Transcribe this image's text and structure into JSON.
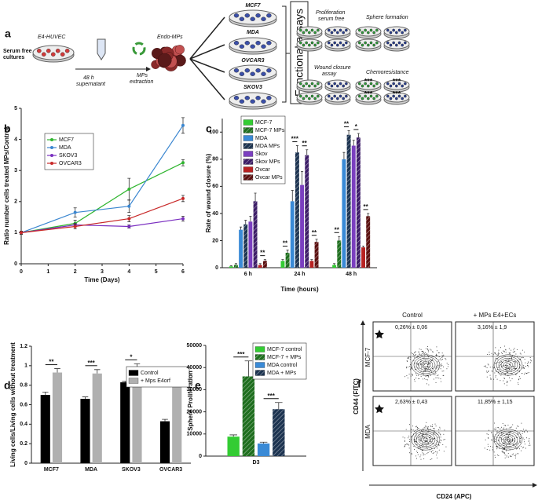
{
  "panel_a": {
    "label": "a",
    "serum_free_cultures": [
      "Serum free",
      "cultures"
    ],
    "cell_line": "E4-HUVEC",
    "supernatant": [
      "48 h",
      "supernatant"
    ],
    "extraction": [
      "MPs",
      "extraction"
    ],
    "endo_mps": "Endo-MPs",
    "targets": [
      "MCF7",
      "MDA",
      "OVCAR3",
      "SKOV3"
    ],
    "functional_assays": "Functional assays",
    "assays": [
      {
        "title": [
          "Proliferation",
          "serum free"
        ]
      },
      {
        "title": [
          "Sphere formation"
        ]
      },
      {
        "title": [
          "Wound closure",
          "assay"
        ]
      },
      {
        "title": [
          "Chemoresistance"
        ],
        "mark": "***"
      }
    ]
  },
  "chart_data": [
    {
      "type": "line",
      "panel": "b",
      "ylabel": "Ratio number cells treated MPs/Control",
      "xlabel": "Time (Days)",
      "x": [
        0,
        2,
        4,
        6
      ],
      "xlim": [
        0,
        6
      ],
      "xticks": [
        0,
        1,
        2,
        3,
        4,
        5,
        6
      ],
      "ylim": [
        0,
        5
      ],
      "yticks": [
        0,
        1,
        2,
        3,
        4,
        5
      ],
      "legend": "upper left",
      "series": [
        {
          "name": "MCF7",
          "color": "#2fb52f",
          "values": [
            1,
            1.3,
            2.4,
            3.25
          ],
          "errors": [
            0.05,
            0.1,
            0.35,
            0.1
          ]
        },
        {
          "name": "MDA",
          "color": "#3a86d0",
          "values": [
            1,
            1.65,
            1.85,
            4.45
          ],
          "errors": [
            0.05,
            0.15,
            0.2,
            0.25
          ]
        },
        {
          "name": "SKOV3",
          "color": "#7a2fc0",
          "values": [
            1,
            1.25,
            1.2,
            1.45
          ],
          "errors": [
            0.05,
            0.05,
            0.05,
            0.08
          ]
        },
        {
          "name": "OVCAR3",
          "color": "#c82828",
          "values": [
            1,
            1.2,
            1.45,
            2.1
          ],
          "errors": [
            0.05,
            0.08,
            0.1,
            0.1
          ]
        }
      ]
    },
    {
      "type": "bar",
      "panel": "c",
      "ylabel": "Rate of wound closure (%)",
      "xlabel": "Time (hours)",
      "categories": [
        "6 h",
        "24 h",
        "48 h"
      ],
      "ylim": [
        0,
        110
      ],
      "yticks": [
        0,
        20,
        40,
        60,
        80,
        100
      ],
      "legend": "upper left",
      "series": [
        {
          "name": "MCF-7",
          "color": "#33cc33",
          "values": [
            1,
            5,
            2
          ],
          "errors": [
            0.5,
            1,
            1
          ]
        },
        {
          "name": "MCF-7 MPs",
          "color": "#1e6e1e",
          "hatched": true,
          "values": [
            2,
            11,
            20
          ],
          "errors": [
            1,
            2,
            3
          ]
        },
        {
          "name": "MDA",
          "color": "#3a8ad6",
          "values": [
            28,
            49,
            80
          ],
          "errors": [
            2,
            8,
            5
          ]
        },
        {
          "name": "MDA MPs",
          "color": "#1c3350",
          "hatched": true,
          "values": [
            32,
            85,
            98
          ],
          "errors": [
            3,
            5,
            3
          ]
        },
        {
          "name": "Skov",
          "color": "#7b3fc0",
          "values": [
            34,
            61,
            90
          ],
          "errors": [
            4,
            10,
            4
          ]
        },
        {
          "name": "Skov MPs",
          "color": "#3b1c66",
          "hatched": true,
          "values": [
            49,
            83,
            96
          ],
          "errors": [
            6,
            4,
            3
          ]
        },
        {
          "name": "Ovcar",
          "color": "#b82222",
          "values": [
            2,
            5,
            15
          ],
          "errors": [
            1,
            1,
            1
          ]
        },
        {
          "name": "Ovcar MPs",
          "color": "#5a1010",
          "hatched": true,
          "values": [
            5,
            19,
            38
          ],
          "errors": [
            1,
            2,
            2
          ]
        }
      ],
      "annotations": [
        [
          {
            "text": "**",
            "between": [
              "Ovcar",
              "Ovcar MPs"
            ]
          }
        ],
        [
          {
            "text": "**",
            "between": [
              "MCF-7",
              "MCF-7 MPs"
            ]
          },
          {
            "text": "***",
            "between": [
              "MDA",
              "MDA MPs"
            ]
          },
          {
            "text": "**",
            "between": [
              "Skov",
              "Skov MPs"
            ]
          },
          {
            "text": "**",
            "between": [
              "Ovcar",
              "Ovcar MPs"
            ]
          }
        ],
        [
          {
            "text": "**",
            "between": [
              "MCF-7",
              "MCF-7 MPs"
            ]
          },
          {
            "text": "**",
            "between": [
              "MDA",
              "MDA MPs"
            ]
          },
          {
            "text": "*",
            "between": [
              "Skov",
              "Skov MPs"
            ]
          },
          {
            "text": "**",
            "between": [
              "Ovcar",
              "Ovcar MPs"
            ]
          }
        ]
      ]
    },
    {
      "type": "bar",
      "panel": "d",
      "ylabel": "Living cells/Living cells without treatment",
      "categories": [
        "MCF7",
        "MDA",
        "SKOV3",
        "OVCAR3"
      ],
      "ylim": [
        0,
        1.2
      ],
      "yticks": [
        0,
        0.2,
        0.4,
        0.6,
        0.8,
        1,
        1.2
      ],
      "legend": "upper right",
      "series": [
        {
          "name": "Control",
          "color": "#000000",
          "values": [
            0.7,
            0.66,
            0.83,
            0.43
          ],
          "errors": [
            0.03,
            0.02,
            0.01,
            0.02
          ]
        },
        {
          "name": "+ Mps E4orf",
          "color": "#b0b0b0",
          "values": [
            0.93,
            0.92,
            0.98,
            0.81
          ],
          "errors": [
            0.04,
            0.04,
            0.04,
            0.05
          ]
        }
      ],
      "annotations": [
        [
          {
            "text": "**",
            "between": [
              "Control",
              "+ Mps E4orf"
            ]
          }
        ],
        [
          {
            "text": "***",
            "between": [
              "Control",
              "+ Mps E4orf"
            ]
          }
        ],
        [
          {
            "text": "*",
            "between": [
              "Control",
              "+ Mps E4orf"
            ]
          }
        ],
        [
          {
            "text": "***",
            "between": [
              "Control",
              "+ Mps E4orf"
            ]
          }
        ]
      ]
    },
    {
      "type": "bar",
      "panel": "e",
      "ylabel": "Sphere Proliferation",
      "categories": [
        "D3"
      ],
      "ylim": [
        0,
        50000
      ],
      "yticks": [
        0,
        10000,
        20000,
        30000,
        40000,
        50000
      ],
      "legend": "upper right",
      "series": [
        {
          "name": "MCF-7 control",
          "color": "#33cc33",
          "values": [
            8800
          ],
          "errors": [
            800
          ]
        },
        {
          "name": "MCF-7 + MPs",
          "color": "#1e6e1e",
          "hatched": true,
          "values": [
            36000
          ],
          "errors": [
            7000
          ]
        },
        {
          "name": "MDA control",
          "color": "#3a8ad6",
          "values": [
            5700
          ],
          "errors": [
            600
          ]
        },
        {
          "name": "MDA + MPs",
          "color": "#1c3350",
          "hatched": true,
          "values": [
            21200
          ],
          "errors": [
            3000
          ]
        }
      ],
      "annotations": [
        [
          {
            "text": "***",
            "between": [
              "MCF-7 control",
              "MCF-7 + MPs"
            ]
          },
          {
            "text": "***",
            "between": [
              "MDA control",
              "MDA + MPs"
            ]
          }
        ]
      ]
    }
  ],
  "panel_f": {
    "label": "f",
    "columns": [
      "Control",
      "+ MPs E4+ECs"
    ],
    "rows": [
      "MCF-7",
      "MDA"
    ],
    "y_axis": "CD44 (FITC)",
    "x_axis": "CD24 (APC)",
    "gates": [
      [
        "0,26% ± 0,06",
        "3,16% ± 1,9"
      ],
      [
        "2,63% ± 0,43",
        "11,85% ± 1,15"
      ]
    ]
  }
}
